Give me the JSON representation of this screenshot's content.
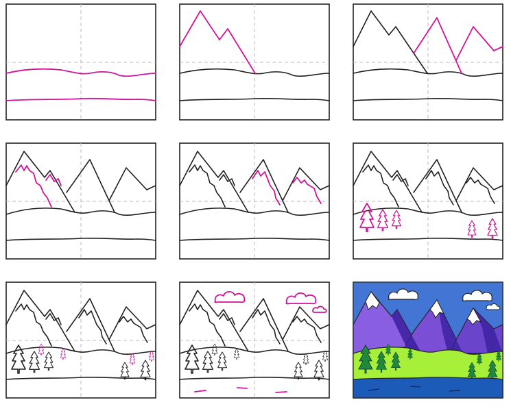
{
  "tutorial": {
    "step_count": 9,
    "highlight_color": "#d0139a",
    "ink_color": "#1f1f1f",
    "guide_color": "#b9b9b9",
    "colored_palette": {
      "sky": "#3b6fd0",
      "mountain_purple": "#7a4fd6",
      "mountain_shadow": "#3a1f9e",
      "snow": "#ffffff",
      "grass": "#a7f03a",
      "tree": "#1f8a3c",
      "water": "#1d5bb8"
    }
  }
}
